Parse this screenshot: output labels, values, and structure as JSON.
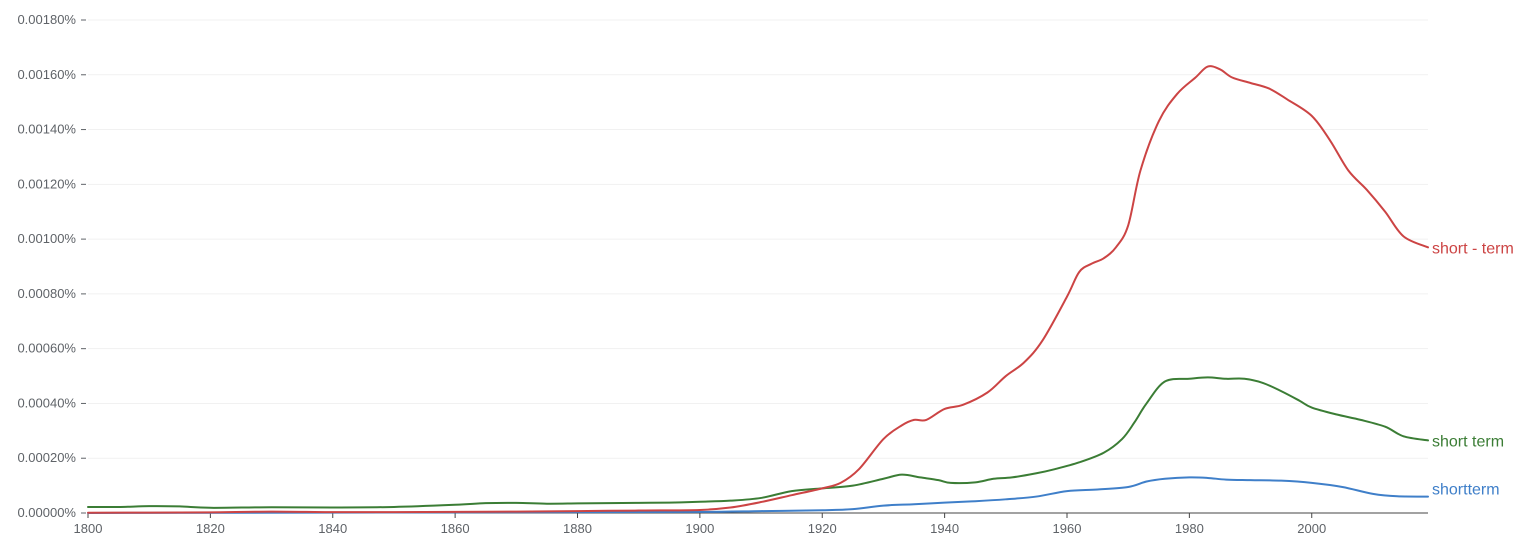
{
  "chart_data": {
    "type": "line",
    "title": "",
    "xlabel": "",
    "ylabel": "",
    "xlim": [
      1800,
      2019
    ],
    "ylim": [
      0,
      0.0018
    ],
    "x_ticks": [
      1800,
      1820,
      1840,
      1860,
      1880,
      1900,
      1920,
      1940,
      1960,
      1980,
      2000
    ],
    "x_tick_labels": [
      "1800",
      "1820",
      "1840",
      "1860",
      "1880",
      "1900",
      "1920",
      "1940",
      "1960",
      "1980",
      "2000"
    ],
    "y_ticks": [
      0,
      0.0002,
      0.0004,
      0.0006,
      0.0008,
      0.001,
      0.0012,
      0.0014,
      0.0016,
      0.0018
    ],
    "y_tick_labels": [
      "0.00000%",
      "0.00020%",
      "0.00040%",
      "0.00060%",
      "0.00080%",
      "0.00100%",
      "0.00120%",
      "0.00140%",
      "0.00160%",
      "0.00180%"
    ],
    "grid": true,
    "legend": "inline labels at line ends",
    "series": [
      {
        "name": "short - term",
        "color": "#cc4444",
        "points": [
          [
            1800,
            1e-06
          ],
          [
            1810,
            1.5e-06
          ],
          [
            1820,
            2.5e-06
          ],
          [
            1830,
            5e-06
          ],
          [
            1840,
            3e-06
          ],
          [
            1850,
            3e-06
          ],
          [
            1860,
            4e-06
          ],
          [
            1870,
            5e-06
          ],
          [
            1880,
            7e-06
          ],
          [
            1890,
            9e-06
          ],
          [
            1900,
            1.1e-05
          ],
          [
            1905,
            2e-05
          ],
          [
            1910,
            4e-05
          ],
          [
            1915,
            6.5e-05
          ],
          [
            1920,
            9e-05
          ],
          [
            1923,
            0.00011
          ],
          [
            1926,
            0.00016
          ],
          [
            1930,
            0.00027
          ],
          [
            1933,
            0.00032
          ],
          [
            1935,
            0.00034
          ],
          [
            1937,
            0.00034
          ],
          [
            1940,
            0.00038
          ],
          [
            1943,
            0.000395
          ],
          [
            1947,
            0.00044
          ],
          [
            1950,
            0.0005
          ],
          [
            1953,
            0.00055
          ],
          [
            1956,
            0.00063
          ],
          [
            1960,
            0.00079
          ],
          [
            1962,
            0.00088
          ],
          [
            1964,
            0.00091
          ],
          [
            1966,
            0.00093
          ],
          [
            1968,
            0.00097
          ],
          [
            1970,
            0.00105
          ],
          [
            1972,
            0.00125
          ],
          [
            1975,
            0.00143
          ],
          [
            1978,
            0.00153
          ],
          [
            1981,
            0.00159
          ],
          [
            1983,
            0.00163
          ],
          [
            1985,
            0.00162
          ],
          [
            1987,
            0.00159
          ],
          [
            1990,
            0.00157
          ],
          [
            1993,
            0.00155
          ],
          [
            1996,
            0.00151
          ],
          [
            2000,
            0.00145
          ],
          [
            2003,
            0.00136
          ],
          [
            2006,
            0.00125
          ],
          [
            2009,
            0.00118
          ],
          [
            2012,
            0.0011
          ],
          [
            2015,
            0.00101
          ],
          [
            2019,
            0.00097
          ]
        ]
      },
      {
        "name": "short term",
        "color": "#3b7d35",
        "points": [
          [
            1800,
            2.2e-05
          ],
          [
            1805,
            2.2e-05
          ],
          [
            1810,
            2.5e-05
          ],
          [
            1815,
            2.4e-05
          ],
          [
            1820,
            1.9e-05
          ],
          [
            1830,
            2.1e-05
          ],
          [
            1840,
            2e-05
          ],
          [
            1850,
            2.2e-05
          ],
          [
            1860,
            3e-05
          ],
          [
            1865,
            3.6e-05
          ],
          [
            1870,
            3.7e-05
          ],
          [
            1875,
            3.4e-05
          ],
          [
            1880,
            3.5e-05
          ],
          [
            1885,
            3.6e-05
          ],
          [
            1890,
            3.7e-05
          ],
          [
            1895,
            3.8e-05
          ],
          [
            1900,
            4.1e-05
          ],
          [
            1905,
            4.5e-05
          ],
          [
            1910,
            5.5e-05
          ],
          [
            1915,
            8e-05
          ],
          [
            1920,
            9e-05
          ],
          [
            1925,
            0.0001
          ],
          [
            1930,
            0.000125
          ],
          [
            1933,
            0.00014
          ],
          [
            1936,
            0.00013
          ],
          [
            1939,
            0.00012
          ],
          [
            1941,
            0.00011
          ],
          [
            1945,
            0.000112
          ],
          [
            1948,
            0.000125
          ],
          [
            1951,
            0.00013
          ],
          [
            1955,
            0.000145
          ],
          [
            1958,
            0.00016
          ],
          [
            1962,
            0.000185
          ],
          [
            1966,
            0.00022
          ],
          [
            1969,
            0.00027
          ],
          [
            1971,
            0.00033
          ],
          [
            1973,
            0.0004
          ],
          [
            1976,
            0.00048
          ],
          [
            1980,
            0.00049
          ],
          [
            1983,
            0.000495
          ],
          [
            1986,
            0.00049
          ],
          [
            1989,
            0.00049
          ],
          [
            1992,
            0.000475
          ],
          [
            1995,
            0.000445
          ],
          [
            1998,
            0.00041
          ],
          [
            2000,
            0.000385
          ],
          [
            2004,
            0.00036
          ],
          [
            2008,
            0.00034
          ],
          [
            2012,
            0.000315
          ],
          [
            2015,
            0.00028
          ],
          [
            2019,
            0.000265
          ]
        ]
      },
      {
        "name": "shortterm",
        "color": "#3f7fc9",
        "points": [
          [
            1800,
            0.0
          ],
          [
            1850,
            2e-06
          ],
          [
            1880,
            3e-06
          ],
          [
            1900,
            4e-06
          ],
          [
            1910,
            7e-06
          ],
          [
            1920,
            1e-05
          ],
          [
            1925,
            1.4e-05
          ],
          [
            1930,
            2.7e-05
          ],
          [
            1935,
            3.2e-05
          ],
          [
            1940,
            3.8e-05
          ],
          [
            1945,
            4.3e-05
          ],
          [
            1950,
            5e-05
          ],
          [
            1955,
            6e-05
          ],
          [
            1960,
            8e-05
          ],
          [
            1965,
            8.6e-05
          ],
          [
            1970,
            9.5e-05
          ],
          [
            1973,
            0.000115
          ],
          [
            1976,
            0.000125
          ],
          [
            1980,
            0.00013
          ],
          [
            1983,
            0.000128
          ],
          [
            1986,
            0.000122
          ],
          [
            1990,
            0.00012
          ],
          [
            1995,
            0.000118
          ],
          [
            2000,
            0.00011
          ],
          [
            2005,
            9.5e-05
          ],
          [
            2010,
            7e-05
          ],
          [
            2014,
            6.1e-05
          ],
          [
            2019,
            6e-05
          ]
        ]
      }
    ]
  }
}
